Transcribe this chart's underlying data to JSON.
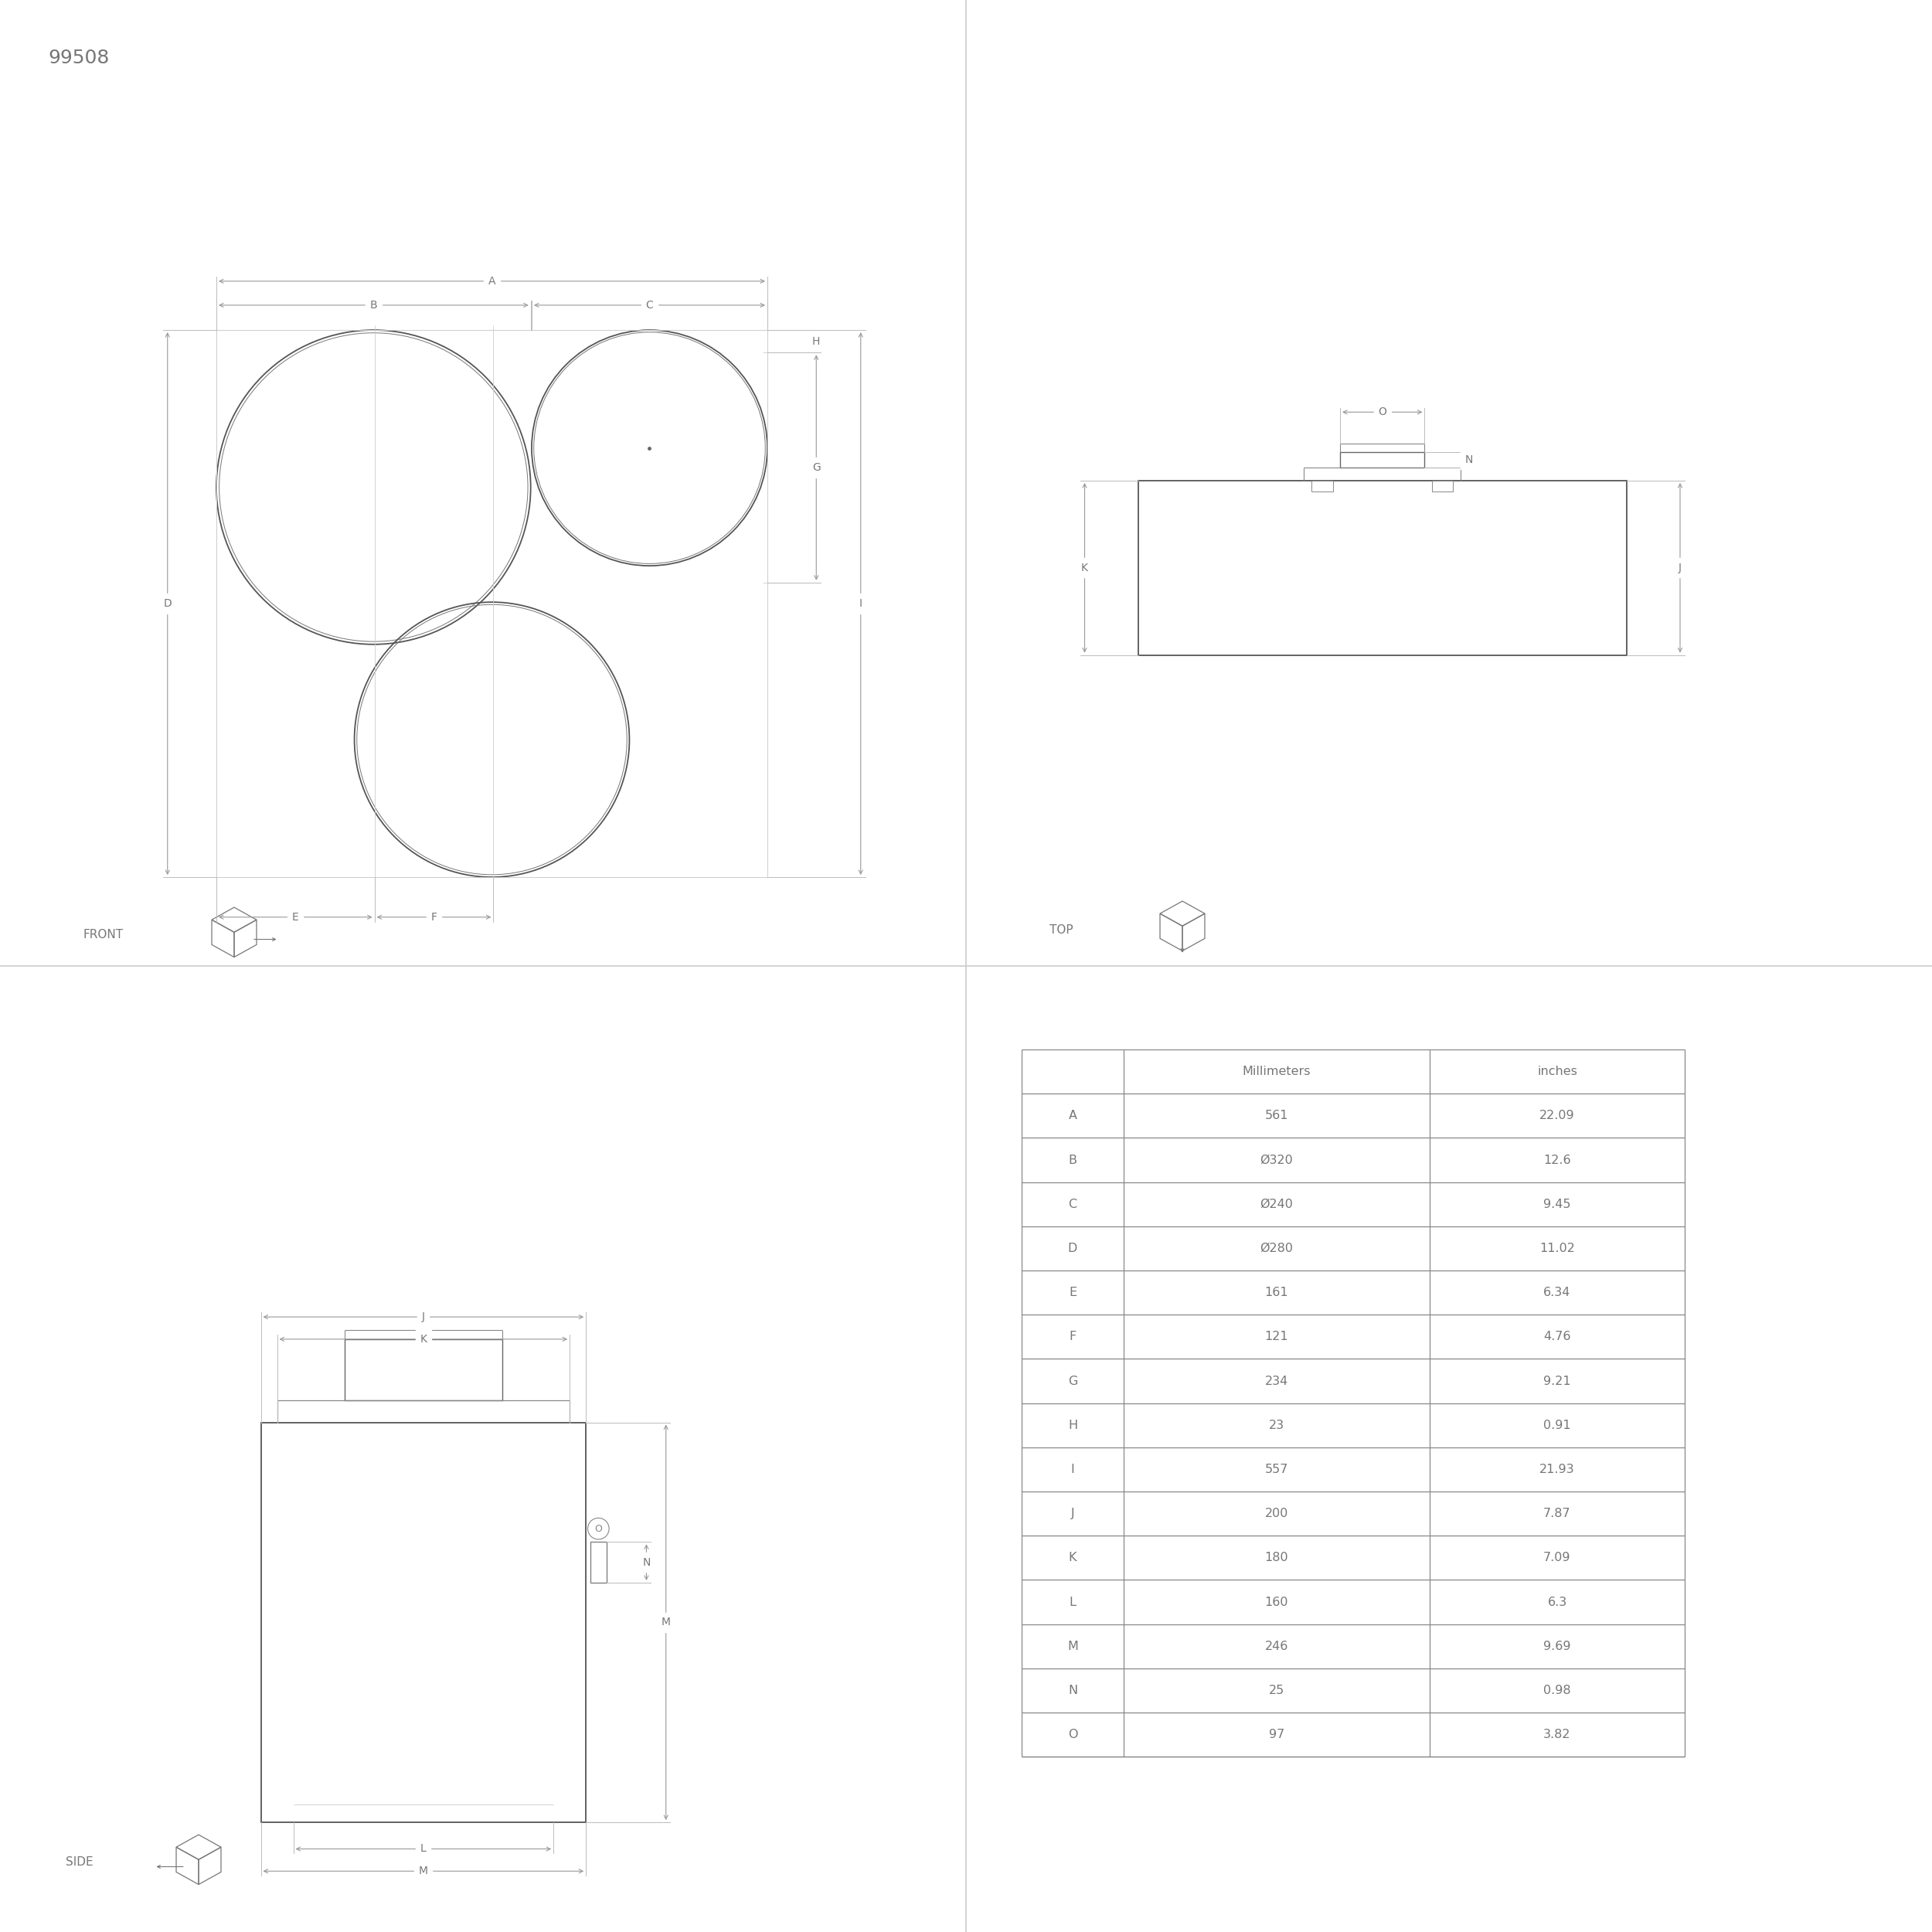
{
  "title_id": "99508",
  "bg_color": "#ffffff",
  "line_color": "#666666",
  "text_color": "#777777",
  "dim_color": "#888888",
  "table_data": {
    "headers": [
      "",
      "Millimeters",
      "inches"
    ],
    "rows": [
      [
        "A",
        "561",
        "22.09"
      ],
      [
        "B",
        "Ø320",
        "12.6"
      ],
      [
        "C",
        "Ø240",
        "9.45"
      ],
      [
        "D",
        "Ø280",
        "11.02"
      ],
      [
        "E",
        "161",
        "6.34"
      ],
      [
        "F",
        "121",
        "4.76"
      ],
      [
        "G",
        "234",
        "9.21"
      ],
      [
        "H",
        "23",
        "0.91"
      ],
      [
        "I",
        "557",
        "21.93"
      ],
      [
        "J",
        "200",
        "7.87"
      ],
      [
        "K",
        "180",
        "7.09"
      ],
      [
        "L",
        "160",
        "6.3"
      ],
      [
        "M",
        "246",
        "9.69"
      ],
      [
        "N",
        "25",
        "0.98"
      ],
      [
        "O",
        "97",
        "3.82"
      ]
    ]
  },
  "front_label": "FRONT",
  "top_label": "TOP",
  "side_label": "SIDE"
}
